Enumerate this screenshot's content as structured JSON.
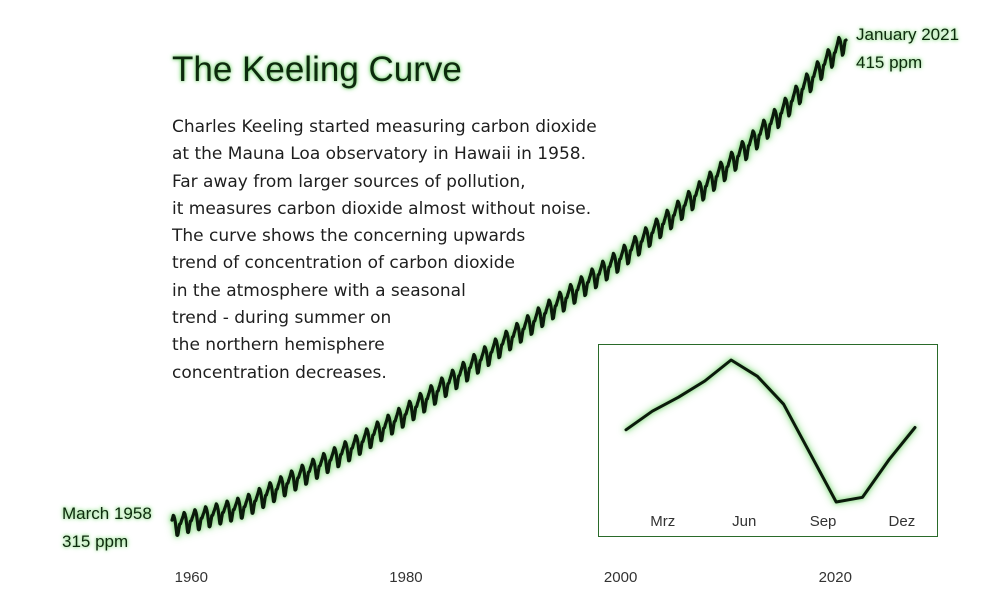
{
  "title": "The Keeling Curve",
  "description_lines": [
    "Charles Keeling started measuring carbon dioxide",
    "at the Mauna Loa observatory in Hawaii in 1958.",
    "Far away from larger sources of pollution,",
    "it measures carbon dioxide almost without noise.",
    "The curve shows the concerning upwards",
    "trend of concentration of carbon dioxide",
    "in the atmosphere with a seasonal",
    "trend - during summer on",
    "the northern hemisphere",
    "concentration decreases."
  ],
  "annotations": {
    "start": {
      "date": "March 1958",
      "value": "315 ppm"
    },
    "end": {
      "date": "January 2021",
      "value": "415 ppm"
    }
  },
  "colors": {
    "line": "#0b1a0b",
    "glow": "#7fd67a",
    "inset_border": "#2a6a2a"
  },
  "chart_data": [
    {
      "type": "line",
      "x_ticks": [
        "1960",
        "1980",
        "2000",
        "2020"
      ],
      "xlim": [
        1958.2,
        2021.0
      ],
      "ylim": [
        315,
        415
      ],
      "trend": {
        "x": [
          1958.2,
          1965,
          1970,
          1975,
          1980,
          1985,
          1990,
          1995,
          2000,
          2005,
          2010,
          2015,
          2021.0
        ],
        "y": [
          315,
          319,
          325,
          331,
          338,
          346,
          354,
          362,
          370,
          379,
          389,
          400,
          415
        ]
      },
      "seasonal_amplitude_ppm": 3,
      "grid": false
    },
    {
      "type": "line",
      "x_ticks": [
        "Mrz",
        "Jun",
        "Sep",
        "Dez"
      ],
      "x": [
        1,
        2,
        3,
        4,
        5,
        6,
        7,
        8,
        9,
        10,
        11,
        12
      ],
      "y": [
        1.1,
        1.9,
        2.5,
        3.2,
        4.1,
        3.4,
        2.2,
        0.1,
        -2.0,
        -1.8,
        -0.2,
        1.2
      ],
      "grid": false
    }
  ]
}
